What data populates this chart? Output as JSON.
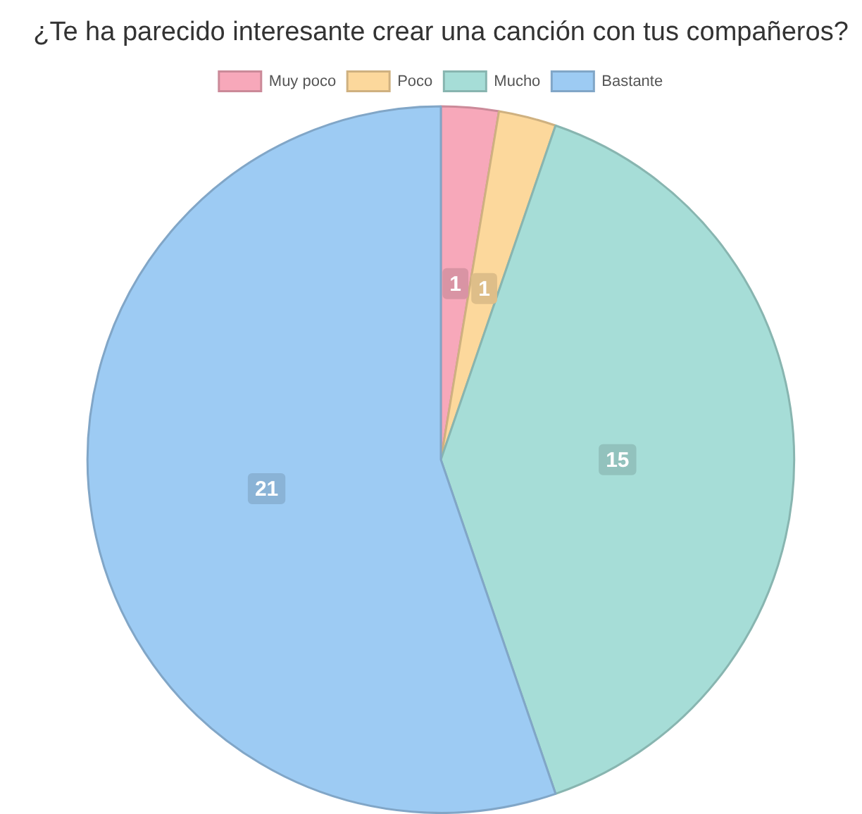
{
  "chart_data": {
    "type": "pie",
    "title": "¿Te ha parecido interesante crear una canción con tus compañeros?",
    "categories": [
      "Muy poco",
      "Poco",
      "Mucho",
      "Bastante"
    ],
    "values": [
      1,
      1,
      15,
      21
    ],
    "colors": [
      "#f7a8ba",
      "#fcd89c",
      "#a6ddd7",
      "#9dcbf3"
    ],
    "legend": "top",
    "data_labels": true
  }
}
